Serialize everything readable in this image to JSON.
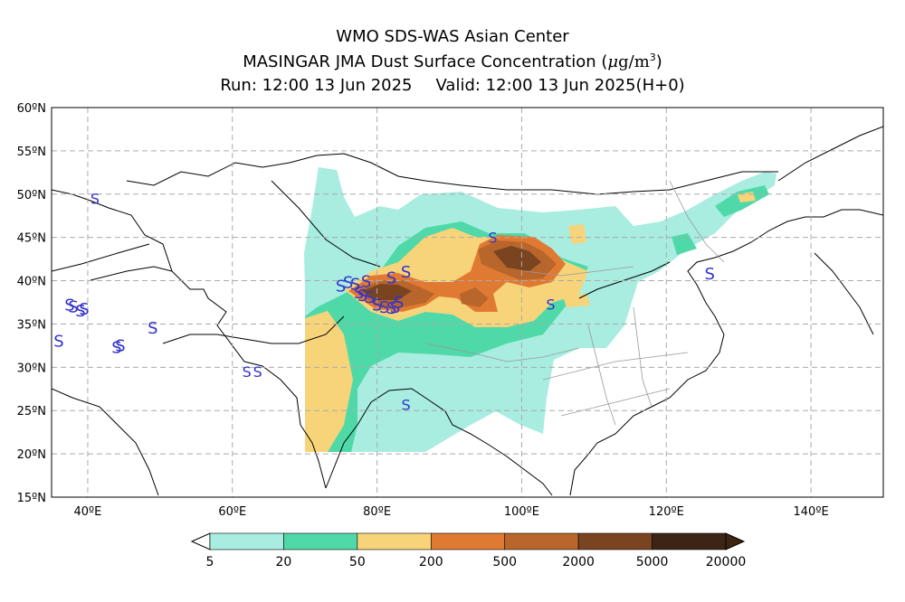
{
  "header": {
    "line1": "WMO SDS-WAS Asian Center",
    "line2_prefix": "MASINGAR JMA Dust Surface Concentration (",
    "line2_unit_mu": "μ",
    "line2_unit_rest": "g/m",
    "line2_unit_exp": "3",
    "line2_suffix": ")",
    "run_label": "Run: 12:00 13 Jun 2025",
    "valid_label": "Valid: 12:00 13 Jun 2025(H+0)"
  },
  "map": {
    "lon_range": [
      35,
      150
    ],
    "lat_range": [
      15,
      60
    ],
    "lon_ticks": [
      "40ºE",
      "60ºE",
      "80ºE",
      "100ºE",
      "120ºE",
      "140ºE"
    ],
    "lat_ticks": [
      "60ºN",
      "55ºN",
      "50ºN",
      "45ºN",
      "40ºN",
      "35ºN",
      "30ºN",
      "25ºN",
      "20ºN",
      "15ºN"
    ],
    "grid": true,
    "marker_symbol": "S",
    "marker_color": "#3333cc"
  },
  "colorbar": {
    "colors": [
      "#a8ede0",
      "#4fd9a8",
      "#f7d47a",
      "#e07a33",
      "#b8662b",
      "#7a4420",
      "#3d2414"
    ],
    "labels": [
      "5",
      "20",
      "50",
      "200",
      "500",
      "2000",
      "5000",
      "20000"
    ]
  }
}
